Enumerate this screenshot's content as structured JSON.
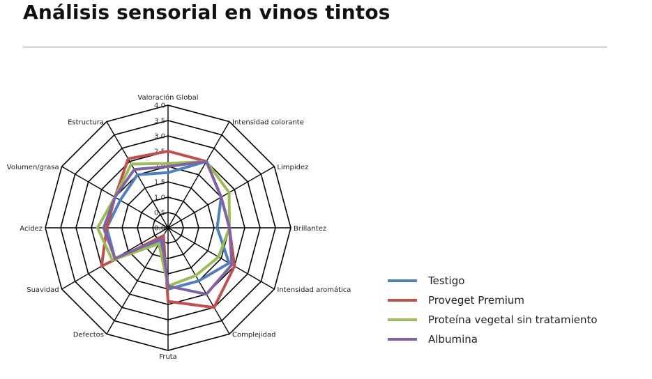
{
  "page": {
    "title": "Análisis sensorial en vinos tintos"
  },
  "chart_data": {
    "type": "radar",
    "title": "",
    "axes": [
      "Valoración Global",
      "Intensidad colorante",
      "Limpidez",
      "Brillantez",
      "Intensidad aromática",
      "Complejidad",
      "Fruta",
      "Defectos",
      "Suavidad",
      "Acidez",
      "Volumen/grasa",
      "Estructura"
    ],
    "scale": {
      "min": 0,
      "max": 4.0,
      "step": 0.5
    },
    "tick_labels": [
      "0.0",
      "0.5",
      "1.0",
      "1.5",
      "2.0",
      "2.5",
      "3.0",
      "3.5",
      "4.0"
    ],
    "series": [
      {
        "name": "Testigo",
        "color": "#4f7fbe",
        "values": [
          1.8,
          2.5,
          2.0,
          1.6,
          2.3,
          2.0,
          2.0,
          0.5,
          2.0,
          2.0,
          1.8,
          2.0
        ]
      },
      {
        "name": "Proveget Premium",
        "color": "#c0504d",
        "values": [
          2.5,
          2.5,
          2.0,
          2.0,
          2.5,
          3.0,
          2.4,
          0.3,
          2.5,
          2.0,
          2.0,
          2.6
        ]
      },
      {
        "name": "Proteína vegetal sin tratamiento",
        "color": "#9bbb59",
        "values": [
          2.1,
          2.5,
          2.3,
          2.0,
          1.9,
          1.8,
          1.9,
          0.6,
          2.1,
          2.3,
          2.0,
          2.4
        ]
      },
      {
        "name": "Albumina",
        "color": "#8064a2",
        "values": [
          2.0,
          2.5,
          2.0,
          2.0,
          2.4,
          2.5,
          1.9,
          0.4,
          2.0,
          2.1,
          2.0,
          2.2
        ]
      }
    ],
    "legend_position": "right"
  }
}
